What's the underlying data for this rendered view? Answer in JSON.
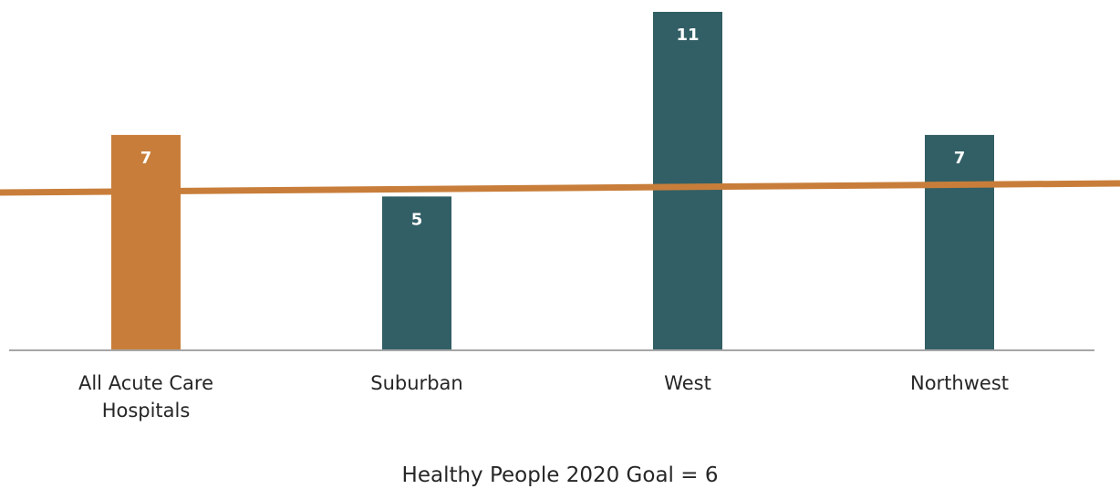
{
  "chart_data": {
    "type": "bar",
    "categories": [
      "All Acute Care Hospitals",
      "Suburban",
      "West",
      "Northwest"
    ],
    "category_lines": [
      [
        "All Acute Care",
        "Hospitals"
      ],
      [
        "Suburban"
      ],
      [
        "West"
      ],
      [
        "Northwest"
      ]
    ],
    "values": [
      7,
      5,
      11,
      7
    ],
    "bar_colors": [
      "#C87E3A",
      "#325F65",
      "#325F65",
      "#325F65"
    ],
    "goal": {
      "label": "Healthy People 2020 Goal = 6",
      "value": 6,
      "color": "#C87E3A"
    },
    "ylim": [
      0,
      11
    ],
    "grid": false,
    "title": "",
    "xlabel": "",
    "ylabel": ""
  }
}
